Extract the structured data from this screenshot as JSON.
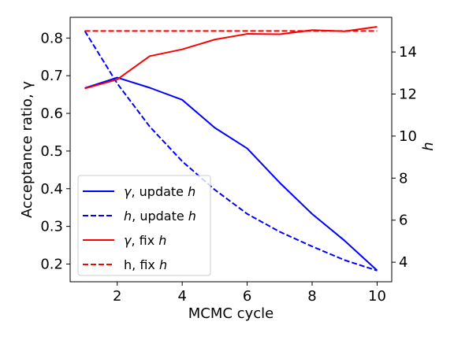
{
  "chart_data": {
    "type": "line",
    "xlabel": "MCMC cycle",
    "ylabel_left": "Acceptance ratio, γ",
    "ylabel_right": "h",
    "x": [
      1,
      2,
      3,
      4,
      5,
      6,
      7,
      8,
      9,
      10
    ],
    "xlim": [
      0.55,
      10.45
    ],
    "ylim_left": [
      0.153,
      0.855
    ],
    "ylim_right": [
      3.07,
      15.65
    ],
    "xticks": [
      2,
      4,
      6,
      8,
      10
    ],
    "yticks_left": [
      0.2,
      0.3,
      0.4,
      0.5,
      0.6,
      0.7,
      0.8
    ],
    "yticks_right": [
      4,
      6,
      8,
      10,
      12,
      14
    ],
    "ytick_labels_left": [
      "0.2",
      "0.3",
      "0.4",
      "0.5",
      "0.6",
      "0.7",
      "0.8"
    ],
    "ytick_labels_right": [
      "4",
      "6",
      "8",
      "10",
      "12",
      "14"
    ],
    "xtick_labels": [
      "2",
      "4",
      "6",
      "8",
      "10"
    ],
    "grid": false,
    "legend_position": "lower-left",
    "series": [
      {
        "name": "γ, update h",
        "axis": "left",
        "color": "#0000ff",
        "dash": "solid",
        "values": [
          0.667,
          0.695,
          0.668,
          0.636,
          0.562,
          0.507,
          0.416,
          0.333,
          0.262,
          0.183
        ]
      },
      {
        "name": "h, update h",
        "axis": "right",
        "color": "#0000ff",
        "dash": "dashed",
        "values": [
          15.0,
          12.5,
          10.45,
          8.8,
          7.45,
          6.3,
          5.45,
          4.75,
          4.1,
          3.6
        ]
      },
      {
        "name": "γ, fix h",
        "axis": "left",
        "color": "#ff0000",
        "dash": "solid",
        "values": [
          0.666,
          0.69,
          0.752,
          0.77,
          0.796,
          0.811,
          0.81,
          0.821,
          0.818,
          0.83
        ]
      },
      {
        "name": "h, fix h",
        "axis": "right",
        "color": "#ff0000",
        "dash": "dashed",
        "values": [
          15.0,
          15.0,
          15.0,
          15.0,
          15.0,
          15.0,
          15.0,
          15.0,
          15.0,
          15.0
        ]
      }
    ],
    "legend": [
      {
        "prefix": "γ",
        "middle": ", update ",
        "suffix": "h",
        "prefix_italic": true,
        "color": "#0000ff",
        "dash": "solid"
      },
      {
        "prefix": "h",
        "middle": ", update ",
        "suffix": "h",
        "prefix_italic": true,
        "color": "#0000ff",
        "dash": "dashed"
      },
      {
        "prefix": "γ",
        "middle": ", fix ",
        "suffix": "h",
        "prefix_italic": true,
        "color": "#ff0000",
        "dash": "solid"
      },
      {
        "prefix": "h",
        "middle": ", fix ",
        "suffix": "h",
        "prefix_italic": false,
        "color": "#ff0000",
        "dash": "dashed"
      }
    ]
  }
}
